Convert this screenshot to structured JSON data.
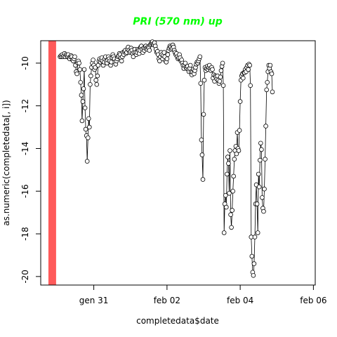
{
  "chart_data": {
    "type": "scatter",
    "title": "PRI (570 nm) up",
    "title_color": "#00ff00",
    "xlabel": "completedata$date",
    "ylabel": "as.numeric(completedata[, i])",
    "x_unit": "days since 2021-01-30 00:00",
    "xlim": [
      -0.45,
      7.05
    ],
    "ylim": [
      -20.4,
      -8.95
    ],
    "x_ticks": [
      {
        "value": 1,
        "label": "gen 31"
      },
      {
        "value": 3,
        "label": "feb 02"
      },
      {
        "value": 5,
        "label": "feb 04"
      },
      {
        "value": 7,
        "label": "feb 06"
      }
    ],
    "y_ticks": [
      {
        "value": -10,
        "label": "-10"
      },
      {
        "value": -12,
        "label": "-12"
      },
      {
        "value": -14,
        "label": "-14"
      },
      {
        "value": -16,
        "label": "-16"
      },
      {
        "value": -18,
        "label": "-18"
      },
      {
        "value": -20,
        "label": "-20"
      }
    ],
    "highlight_band": {
      "x_from": -0.24,
      "x_to": -0.03,
      "color": "#ff5a5a"
    },
    "series": [
      {
        "name": "PRI (570 nm) up",
        "line_color": "#000000",
        "marker": "open-circle",
        "points": [
          [
            0.08,
            -9.7
          ],
          [
            0.1,
            -9.65
          ],
          [
            0.12,
            -9.7
          ],
          [
            0.14,
            -9.6
          ],
          [
            0.16,
            -9.7
          ],
          [
            0.18,
            -9.65
          ],
          [
            0.2,
            -9.55
          ],
          [
            0.22,
            -9.7
          ],
          [
            0.24,
            -9.6
          ],
          [
            0.26,
            -9.65
          ],
          [
            0.28,
            -9.7
          ],
          [
            0.3,
            -9.6
          ],
          [
            0.32,
            -9.75
          ],
          [
            0.34,
            -9.8
          ],
          [
            0.36,
            -9.7
          ],
          [
            0.38,
            -9.65
          ],
          [
            0.4,
            -9.7
          ],
          [
            0.42,
            -9.85
          ],
          [
            0.44,
            -9.9
          ],
          [
            0.46,
            -9.8
          ],
          [
            0.48,
            -9.7
          ],
          [
            0.5,
            -10.1
          ],
          [
            0.52,
            -10.4
          ],
          [
            0.54,
            -10.5
          ],
          [
            0.56,
            -10.0
          ],
          [
            0.58,
            -9.9
          ],
          [
            0.6,
            -10.0
          ],
          [
            0.62,
            -10.3
          ],
          [
            0.64,
            -10.9
          ],
          [
            0.66,
            -11.5
          ],
          [
            0.68,
            -12.7
          ],
          [
            0.7,
            -11.8
          ],
          [
            0.72,
            -11.2
          ],
          [
            0.74,
            -10.3
          ],
          [
            0.76,
            -12.1
          ],
          [
            0.78,
            -13.1
          ],
          [
            0.8,
            -13.4
          ],
          [
            0.82,
            -14.6
          ],
          [
            0.84,
            -13.5
          ],
          [
            0.86,
            -12.6
          ],
          [
            0.88,
            -13.0
          ],
          [
            0.9,
            -11.0
          ],
          [
            0.92,
            -10.6
          ],
          [
            0.94,
            -10.2
          ],
          [
            0.96,
            -10.0
          ],
          [
            0.98,
            -9.85
          ],
          [
            1.0,
            -10.1
          ],
          [
            1.02,
            -10.3
          ],
          [
            1.04,
            -10.2
          ],
          [
            1.06,
            -10.8
          ],
          [
            1.08,
            -11.0
          ],
          [
            1.1,
            -10.6
          ],
          [
            1.12,
            -10.1
          ],
          [
            1.14,
            -9.9
          ],
          [
            1.16,
            -9.8
          ],
          [
            1.18,
            -9.95
          ],
          [
            1.2,
            -9.85
          ],
          [
            1.22,
            -9.75
          ],
          [
            1.24,
            -9.9
          ],
          [
            1.26,
            -10.1
          ],
          [
            1.28,
            -9.95
          ],
          [
            1.3,
            -9.8
          ],
          [
            1.32,
            -9.7
          ],
          [
            1.34,
            -9.9
          ],
          [
            1.36,
            -10.0
          ],
          [
            1.38,
            -9.85
          ],
          [
            1.4,
            -9.7
          ],
          [
            1.42,
            -9.8
          ],
          [
            1.44,
            -9.9
          ],
          [
            1.46,
            -10.1
          ],
          [
            1.48,
            -9.95
          ],
          [
            1.5,
            -9.75
          ],
          [
            1.52,
            -9.6
          ],
          [
            1.54,
            -9.7
          ],
          [
            1.56,
            -9.8
          ],
          [
            1.58,
            -9.95
          ],
          [
            1.6,
            -10.05
          ],
          [
            1.62,
            -9.9
          ],
          [
            1.64,
            -9.8
          ],
          [
            1.66,
            -9.7
          ],
          [
            1.68,
            -9.65
          ],
          [
            1.7,
            -9.55
          ],
          [
            1.72,
            -9.6
          ],
          [
            1.74,
            -9.75
          ],
          [
            1.76,
            -9.9
          ],
          [
            1.78,
            -9.7
          ],
          [
            1.8,
            -9.5
          ],
          [
            1.82,
            -9.6
          ],
          [
            1.84,
            -9.45
          ],
          [
            1.86,
            -9.4
          ],
          [
            1.88,
            -9.55
          ],
          [
            1.9,
            -9.5
          ],
          [
            1.92,
            -9.35
          ],
          [
            1.94,
            -9.25
          ],
          [
            1.96,
            -9.4
          ],
          [
            1.98,
            -9.5
          ],
          [
            2.0,
            -9.45
          ],
          [
            2.02,
            -9.3
          ],
          [
            2.04,
            -9.4
          ],
          [
            2.06,
            -9.55
          ],
          [
            2.08,
            -9.7
          ],
          [
            2.1,
            -9.5
          ],
          [
            2.12,
            -9.35
          ],
          [
            2.14,
            -9.5
          ],
          [
            2.16,
            -9.6
          ],
          [
            2.18,
            -9.5
          ],
          [
            2.2,
            -9.35
          ],
          [
            2.22,
            -9.4
          ],
          [
            2.24,
            -9.55
          ],
          [
            2.26,
            -9.4
          ],
          [
            2.28,
            -9.25
          ],
          [
            2.3,
            -9.2
          ],
          [
            2.32,
            -9.35
          ],
          [
            2.34,
            -9.5
          ],
          [
            2.36,
            -9.3
          ],
          [
            2.38,
            -9.4
          ],
          [
            2.4,
            -9.3
          ],
          [
            2.42,
            -9.2
          ],
          [
            2.44,
            -9.3
          ],
          [
            2.46,
            -9.35
          ],
          [
            2.48,
            -9.25
          ],
          [
            2.5,
            -9.3
          ],
          [
            2.52,
            -9.4
          ],
          [
            2.54,
            -9.15
          ],
          [
            2.56,
            -9.1
          ],
          [
            2.58,
            -9.05
          ],
          [
            2.6,
            -9.0
          ],
          [
            2.62,
            -9.1
          ],
          [
            2.64,
            -9.15
          ],
          [
            2.66,
            -9.05
          ],
          [
            2.68,
            -9.2
          ],
          [
            2.7,
            -9.35
          ],
          [
            2.72,
            -9.5
          ],
          [
            2.74,
            -9.45
          ],
          [
            2.76,
            -9.6
          ],
          [
            2.78,
            -9.8
          ],
          [
            2.8,
            -9.9
          ],
          [
            2.82,
            -9.7
          ],
          [
            2.84,
            -9.5
          ],
          [
            2.86,
            -9.6
          ],
          [
            2.88,
            -9.8
          ],
          [
            2.9,
            -9.65
          ],
          [
            2.92,
            -9.5
          ],
          [
            2.94,
            -9.7
          ],
          [
            2.96,
            -9.9
          ],
          [
            2.98,
            -9.95
          ],
          [
            3.0,
            -9.8
          ],
          [
            3.02,
            -9.6
          ],
          [
            3.04,
            -9.4
          ],
          [
            3.06,
            -9.3
          ],
          [
            3.08,
            -9.2
          ],
          [
            3.1,
            -9.25
          ],
          [
            3.12,
            -9.35
          ],
          [
            3.14,
            -9.3
          ],
          [
            3.16,
            -9.15
          ],
          [
            3.18,
            -9.25
          ],
          [
            3.2,
            -9.4
          ],
          [
            3.22,
            -9.5
          ],
          [
            3.24,
            -9.6
          ],
          [
            3.26,
            -9.55
          ],
          [
            3.28,
            -9.7
          ],
          [
            3.3,
            -9.8
          ],
          [
            3.32,
            -9.75
          ],
          [
            3.34,
            -9.6
          ],
          [
            3.36,
            -9.75
          ],
          [
            3.38,
            -9.9
          ],
          [
            3.4,
            -9.85
          ],
          [
            3.42,
            -10.0
          ],
          [
            3.44,
            -10.1
          ],
          [
            3.46,
            -10.25
          ],
          [
            3.48,
            -10.1
          ],
          [
            3.5,
            -10.0
          ],
          [
            3.52,
            -10.2
          ],
          [
            3.54,
            -10.25
          ],
          [
            3.56,
            -10.15
          ],
          [
            3.58,
            -10.3
          ],
          [
            3.6,
            -10.4
          ],
          [
            3.62,
            -10.25
          ],
          [
            3.64,
            -10.1
          ],
          [
            3.66,
            -10.4
          ],
          [
            3.68,
            -10.55
          ],
          [
            3.7,
            -10.4
          ],
          [
            3.72,
            -10.3
          ],
          [
            3.74,
            -10.5
          ],
          [
            3.76,
            -10.35
          ],
          [
            3.78,
            -10.2
          ],
          [
            3.8,
            -10.05
          ],
          [
            3.82,
            -9.95
          ],
          [
            3.84,
            -10.0
          ],
          [
            3.86,
            -9.9
          ],
          [
            3.88,
            -9.8
          ],
          [
            3.9,
            -9.7
          ],
          [
            3.92,
            -10.95
          ],
          [
            3.94,
            -13.6
          ],
          [
            3.96,
            -14.3
          ],
          [
            3.98,
            -15.45
          ],
          [
            4.0,
            -12.4
          ],
          [
            4.02,
            -10.8
          ],
          [
            4.04,
            -10.2
          ],
          [
            4.06,
            -10.35
          ],
          [
            4.08,
            -10.25
          ],
          [
            4.1,
            -10.15
          ],
          [
            4.12,
            -10.3
          ],
          [
            4.14,
            -10.2
          ],
          [
            4.16,
            -10.1
          ],
          [
            4.18,
            -10.25
          ],
          [
            4.2,
            -10.35
          ],
          [
            4.22,
            -10.2
          ],
          [
            4.24,
            -10.3
          ],
          [
            4.26,
            -10.7
          ],
          [
            4.28,
            -10.55
          ],
          [
            4.3,
            -10.85
          ],
          [
            4.32,
            -10.6
          ],
          [
            4.34,
            -10.65
          ],
          [
            4.36,
            -10.75
          ],
          [
            4.38,
            -10.6
          ],
          [
            4.4,
            -10.8
          ],
          [
            4.42,
            -10.95
          ],
          [
            4.44,
            -10.85
          ],
          [
            4.46,
            -10.65
          ],
          [
            4.48,
            -10.35
          ],
          [
            4.5,
            -10.15
          ],
          [
            4.52,
            -10.0
          ],
          [
            4.54,
            -11.05
          ],
          [
            4.56,
            -17.95
          ],
          [
            4.58,
            -16.6
          ],
          [
            4.6,
            -16.2
          ],
          [
            4.62,
            -16.75
          ],
          [
            4.64,
            -15.2
          ],
          [
            4.66,
            -14.4
          ],
          [
            4.68,
            -14.7
          ],
          [
            4.7,
            -16.1
          ],
          [
            4.72,
            -14.1
          ],
          [
            4.74,
            -17.1
          ],
          [
            4.76,
            -17.7
          ],
          [
            4.78,
            -16.9
          ],
          [
            4.8,
            -16.0
          ],
          [
            4.82,
            -15.3
          ],
          [
            4.84,
            -14.5
          ],
          [
            4.86,
            -14.1
          ],
          [
            4.88,
            -13.9
          ],
          [
            4.9,
            -14.25
          ],
          [
            4.92,
            -13.25
          ],
          [
            4.94,
            -14.0
          ],
          [
            4.96,
            -14.1
          ],
          [
            4.98,
            -13.15
          ],
          [
            5.0,
            -11.8
          ],
          [
            5.02,
            -10.8
          ],
          [
            5.04,
            -10.6
          ],
          [
            5.06,
            -10.5
          ],
          [
            5.08,
            -10.7
          ],
          [
            5.1,
            -10.45
          ],
          [
            5.12,
            -10.45
          ],
          [
            5.14,
            -10.3
          ],
          [
            5.16,
            -10.4
          ],
          [
            5.18,
            -10.2
          ],
          [
            5.2,
            -10.1
          ],
          [
            5.22,
            -10.3
          ],
          [
            5.24,
            -10.05
          ],
          [
            5.26,
            -10.1
          ],
          [
            5.28,
            -11.05
          ],
          [
            5.3,
            -18.15
          ],
          [
            5.32,
            -19.05
          ],
          [
            5.34,
            -19.8
          ],
          [
            5.36,
            -19.95
          ],
          [
            5.38,
            -19.4
          ],
          [
            5.4,
            -18.15
          ],
          [
            5.42,
            -16.6
          ],
          [
            5.44,
            -15.7
          ],
          [
            5.46,
            -16.6
          ],
          [
            5.48,
            -17.95
          ],
          [
            5.5,
            -15.2
          ],
          [
            5.52,
            -15.8
          ],
          [
            5.54,
            -14.55
          ],
          [
            5.56,
            -13.75
          ],
          [
            5.58,
            -14.05
          ],
          [
            5.6,
            -16.3
          ],
          [
            5.62,
            -16.8
          ],
          [
            5.64,
            -16.95
          ],
          [
            5.66,
            -15.9
          ],
          [
            5.68,
            -14.5
          ],
          [
            5.7,
            -12.95
          ],
          [
            5.72,
            -11.25
          ],
          [
            5.74,
            -10.9
          ],
          [
            5.76,
            -10.4
          ],
          [
            5.78,
            -10.1
          ],
          [
            5.8,
            -10.25
          ],
          [
            5.82,
            -10.1
          ],
          [
            5.84,
            -10.4
          ],
          [
            5.86,
            -10.5
          ],
          [
            5.88,
            -11.35
          ]
        ]
      }
    ]
  }
}
